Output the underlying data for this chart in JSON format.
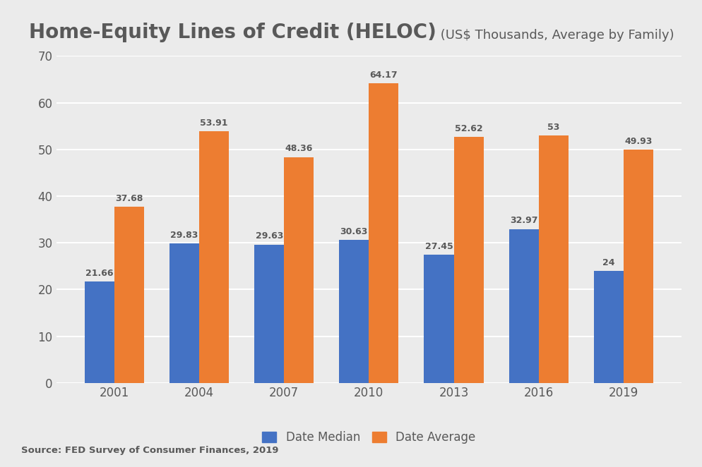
{
  "title_bold": "Home-Equity Lines of Credit (HELOC)",
  "title_light": " (US$ Thousands, Average by Family)",
  "categories": [
    "2001",
    "2004",
    "2007",
    "2010",
    "2013",
    "2016",
    "2019"
  ],
  "median_values": [
    21.66,
    29.83,
    29.63,
    30.63,
    27.45,
    32.97,
    24.0
  ],
  "average_values": [
    37.68,
    53.91,
    48.36,
    64.17,
    52.62,
    53.0,
    49.93
  ],
  "median_labels": [
    "21.66",
    "29.83",
    "29.63",
    "30.63",
    "27.45",
    "32.97",
    "24"
  ],
  "average_labels": [
    "37.68",
    "53.91",
    "48.36",
    "64.17",
    "52.62",
    "53",
    "49.93"
  ],
  "median_color": "#4472C4",
  "average_color": "#ED7D31",
  "background_color": "#EBEBEB",
  "plot_bg_color": "#EBEBEB",
  "grid_color": "#FFFFFF",
  "text_color": "#595959",
  "ylim": [
    0,
    70
  ],
  "yticks": [
    0,
    10,
    20,
    30,
    40,
    50,
    60,
    70
  ],
  "bar_width": 0.35,
  "legend_median": "Date Median",
  "legend_average": "Date Average",
  "source_text": "Source: FED Survey of Consumer Finances, 2019",
  "label_fontsize": 9,
  "axis_fontsize": 12,
  "title_bold_fontsize": 20,
  "title_light_fontsize": 13
}
